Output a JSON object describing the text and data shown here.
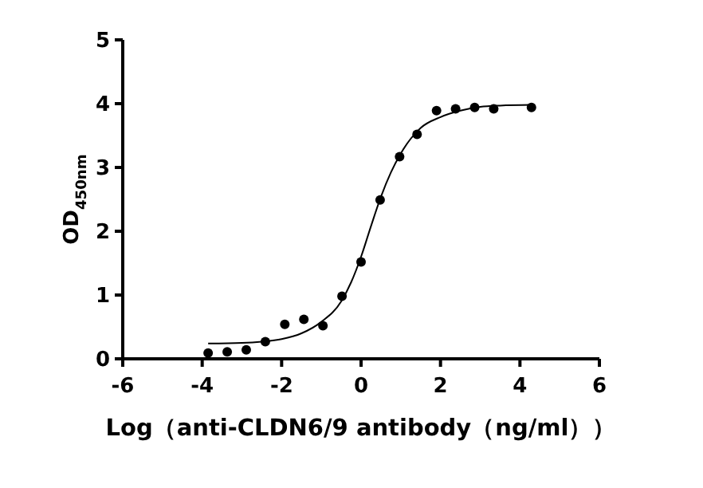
{
  "chart_data": {
    "type": "scatter",
    "xlabel": "Log（anti-CLDN6/9 antibody（ng/ml））",
    "ylabel": "OD$_{450nm}$",
    "xlim": [
      -6,
      6
    ],
    "xticks": [
      -6,
      -4,
      -2,
      0,
      2,
      4,
      6
    ],
    "ylim": [
      0,
      5
    ],
    "yticks": [
      0,
      1,
      2,
      3,
      4,
      5
    ],
    "grid": false,
    "series": [
      {
        "color": "#000000",
        "marker": "circle",
        "x": [
          -3.85,
          -3.37,
          -2.89,
          -2.41,
          -1.92,
          -1.44,
          -0.96,
          -0.48,
          0.0,
          0.48,
          0.97,
          1.41,
          1.9,
          2.38,
          2.86,
          3.34,
          4.29
        ],
        "values": [
          0.09,
          0.11,
          0.14,
          0.27,
          0.54,
          0.62,
          0.52,
          0.98,
          1.52,
          2.49,
          3.17,
          3.52,
          3.89,
          3.92,
          3.94,
          3.92,
          3.94
        ]
      },
      {
        "type": "line",
        "color": "#000000",
        "line_style": "solid",
        "x": [
          -3.85,
          -3,
          -2.5,
          -2,
          -1.5,
          -1,
          -0.5,
          -0.25,
          0,
          0.25,
          0.5,
          0.75,
          1,
          1.25,
          1.5,
          2,
          2.5,
          3,
          3.5,
          4.29
        ],
        "values": [
          0.24,
          0.25,
          0.27,
          0.31,
          0.4,
          0.58,
          0.9,
          1.2,
          1.6,
          2.08,
          2.54,
          2.92,
          3.22,
          3.45,
          3.62,
          3.79,
          3.89,
          3.95,
          3.97,
          3.98
        ]
      }
    ]
  }
}
